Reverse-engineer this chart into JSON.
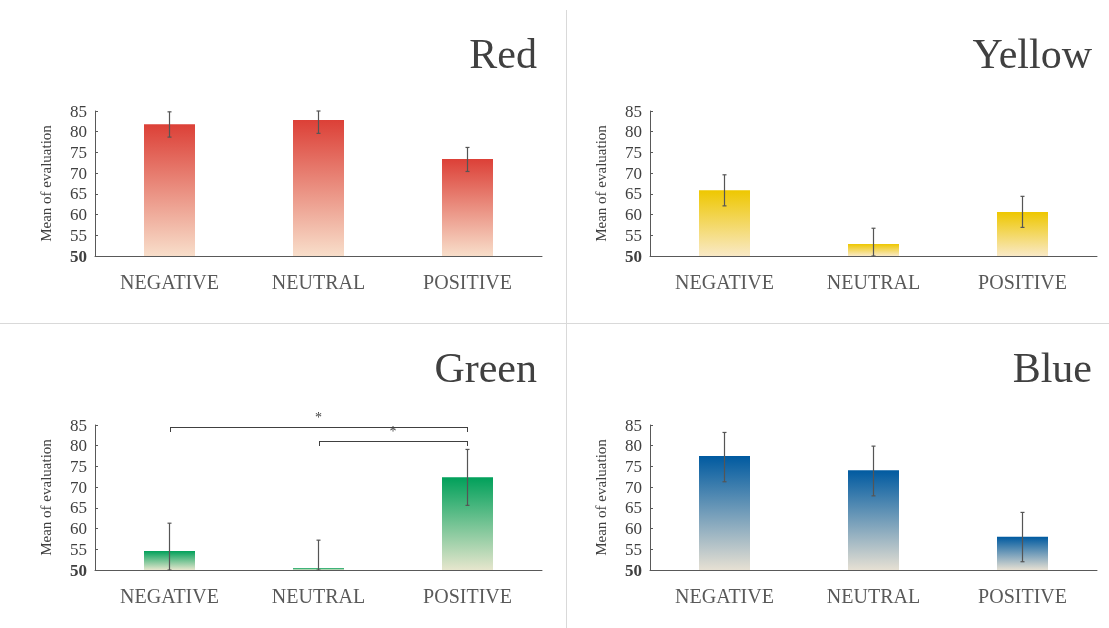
{
  "chart_data": [
    {
      "type": "bar",
      "title": "Red",
      "ylabel": "Mean of evaluation",
      "categories": [
        "NEGATIVE",
        "NEUTRAL",
        "POSITIVE"
      ],
      "values": [
        81.8,
        82.8,
        73.4
      ],
      "errors": [
        [
          78.7,
          84.8
        ],
        [
          79.6,
          85
        ],
        [
          70.4,
          76.2
        ]
      ],
      "color": "#dc4037",
      "ylim": [
        50,
        85
      ],
      "yticks": [
        50,
        55,
        60,
        65,
        70,
        75,
        80,
        85
      ]
    },
    {
      "type": "bar",
      "title": "Yellow",
      "ylabel": "Mean of evaluation",
      "categories": [
        "NEGATIVE",
        "NEUTRAL",
        "POSITIVE"
      ],
      "values": [
        65.9,
        52.9,
        60.6
      ],
      "errors": [
        [
          62.1,
          69.6
        ],
        [
          50,
          56.7
        ],
        [
          56.9,
          64.4
        ]
      ],
      "color": "#eec700",
      "ylim": [
        50,
        85
      ],
      "yticks": [
        50,
        55,
        60,
        65,
        70,
        75,
        80,
        85
      ]
    },
    {
      "type": "bar",
      "title": "Green",
      "ylabel": "Mean of evaluation",
      "categories": [
        "NEGATIVE",
        "NEUTRAL",
        "POSITIVE"
      ],
      "values": [
        54.6,
        50.5,
        72.4
      ],
      "errors": [
        [
          50,
          61.3
        ],
        [
          50,
          57.2
        ],
        [
          65.6,
          79.1
        ]
      ],
      "color": "#00a05a",
      "ylim": [
        50,
        85
      ],
      "yticks": [
        50,
        55,
        60,
        65,
        70,
        75,
        80,
        85
      ],
      "annotations": [
        "*",
        "*"
      ]
    },
    {
      "type": "bar",
      "title": "Blue",
      "ylabel": "Mean of evaluation",
      "categories": [
        "NEGATIVE",
        "NEUTRAL",
        "POSITIVE"
      ],
      "values": [
        77.5,
        74.1,
        58.0
      ],
      "errors": [
        [
          71.3,
          83.2
        ],
        [
          67.9,
          79.9
        ],
        [
          52.0,
          63.9
        ]
      ],
      "color": "#005aa0",
      "ylim": [
        50,
        85
      ],
      "yticks": [
        50,
        55,
        60,
        65,
        70,
        75,
        80,
        85
      ]
    }
  ]
}
